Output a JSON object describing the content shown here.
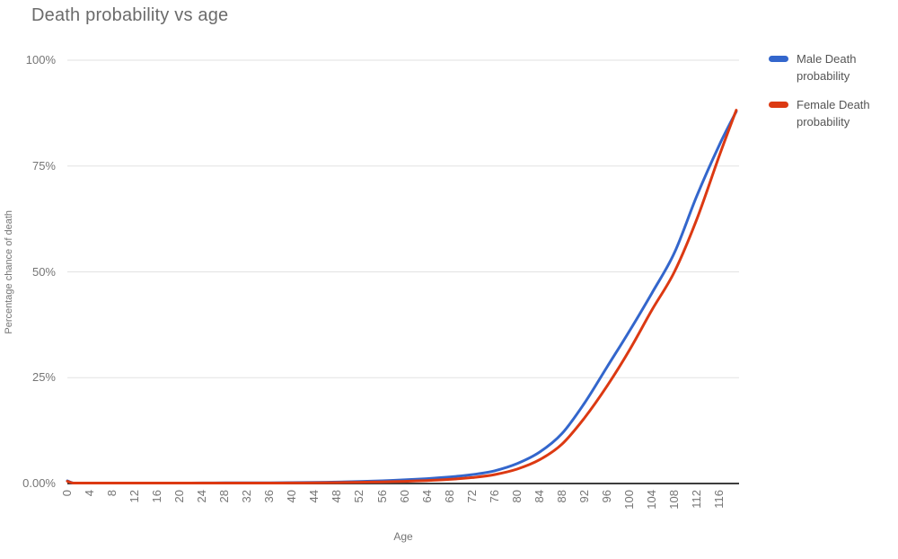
{
  "chart_data": {
    "type": "line",
    "title": "Death probability vs age",
    "xlabel": "Age",
    "ylabel": "Percentage chance of death",
    "xlim": [
      0,
      119.5
    ],
    "ylim": [
      0,
      100
    ],
    "grid": "horizontal",
    "legend_position": "right",
    "axis_color": "#3e3e3e",
    "gridline_color": "#e2e2e2",
    "x": [
      0,
      1,
      2,
      4,
      8,
      12,
      16,
      20,
      24,
      28,
      32,
      36,
      40,
      44,
      48,
      52,
      56,
      60,
      64,
      68,
      72,
      76,
      80,
      84,
      88,
      92,
      96,
      100,
      104,
      108,
      112,
      116,
      119
    ],
    "series": [
      {
        "name": "Male Death probability",
        "color": "#3366cc",
        "values": [
          0.64,
          0.045,
          0.03,
          0.02,
          0.01,
          0.02,
          0.06,
          0.11,
          0.13,
          0.15,
          0.16,
          0.18,
          0.21,
          0.26,
          0.35,
          0.49,
          0.64,
          0.86,
          1.15,
          1.55,
          2.1,
          3.0,
          4.7,
          7.4,
          11.8,
          19.0,
          27.5,
          36.0,
          45.0,
          54.5,
          68.0,
          80.0,
          87.9
        ]
      },
      {
        "name": "Female Death probability",
        "color": "#dc3912",
        "values": [
          0.53,
          0.04,
          0.025,
          0.015,
          0.01,
          0.01,
          0.03,
          0.04,
          0.05,
          0.06,
          0.08,
          0.09,
          0.12,
          0.16,
          0.21,
          0.29,
          0.39,
          0.52,
          0.71,
          0.97,
          1.4,
          2.1,
          3.4,
          5.6,
          9.3,
          15.5,
          23.0,
          31.5,
          41.0,
          50.0,
          62.5,
          77.5,
          88.2
        ]
      }
    ],
    "yticks": [
      {
        "value": 0,
        "label": "0.00%"
      },
      {
        "value": 25,
        "label": "25%"
      },
      {
        "value": 50,
        "label": "50%"
      },
      {
        "value": 75,
        "label": "75%"
      },
      {
        "value": 100,
        "label": "100%"
      }
    ],
    "xtick_values": [
      0,
      4,
      8,
      12,
      16,
      20,
      24,
      28,
      32,
      36,
      40,
      44,
      48,
      52,
      56,
      60,
      64,
      68,
      72,
      76,
      80,
      84,
      88,
      92,
      96,
      100,
      104,
      108,
      112,
      116
    ],
    "xtick_labels": [
      "0",
      "4",
      "8",
      "12",
      "16",
      "20",
      "24",
      "28",
      "32",
      "36",
      "40",
      "44",
      "48",
      "52",
      "56",
      "60",
      "64",
      "68",
      "72",
      "76",
      "80",
      "84",
      "88",
      "92",
      "96",
      "100",
      "104",
      "108",
      "112",
      "116"
    ]
  }
}
